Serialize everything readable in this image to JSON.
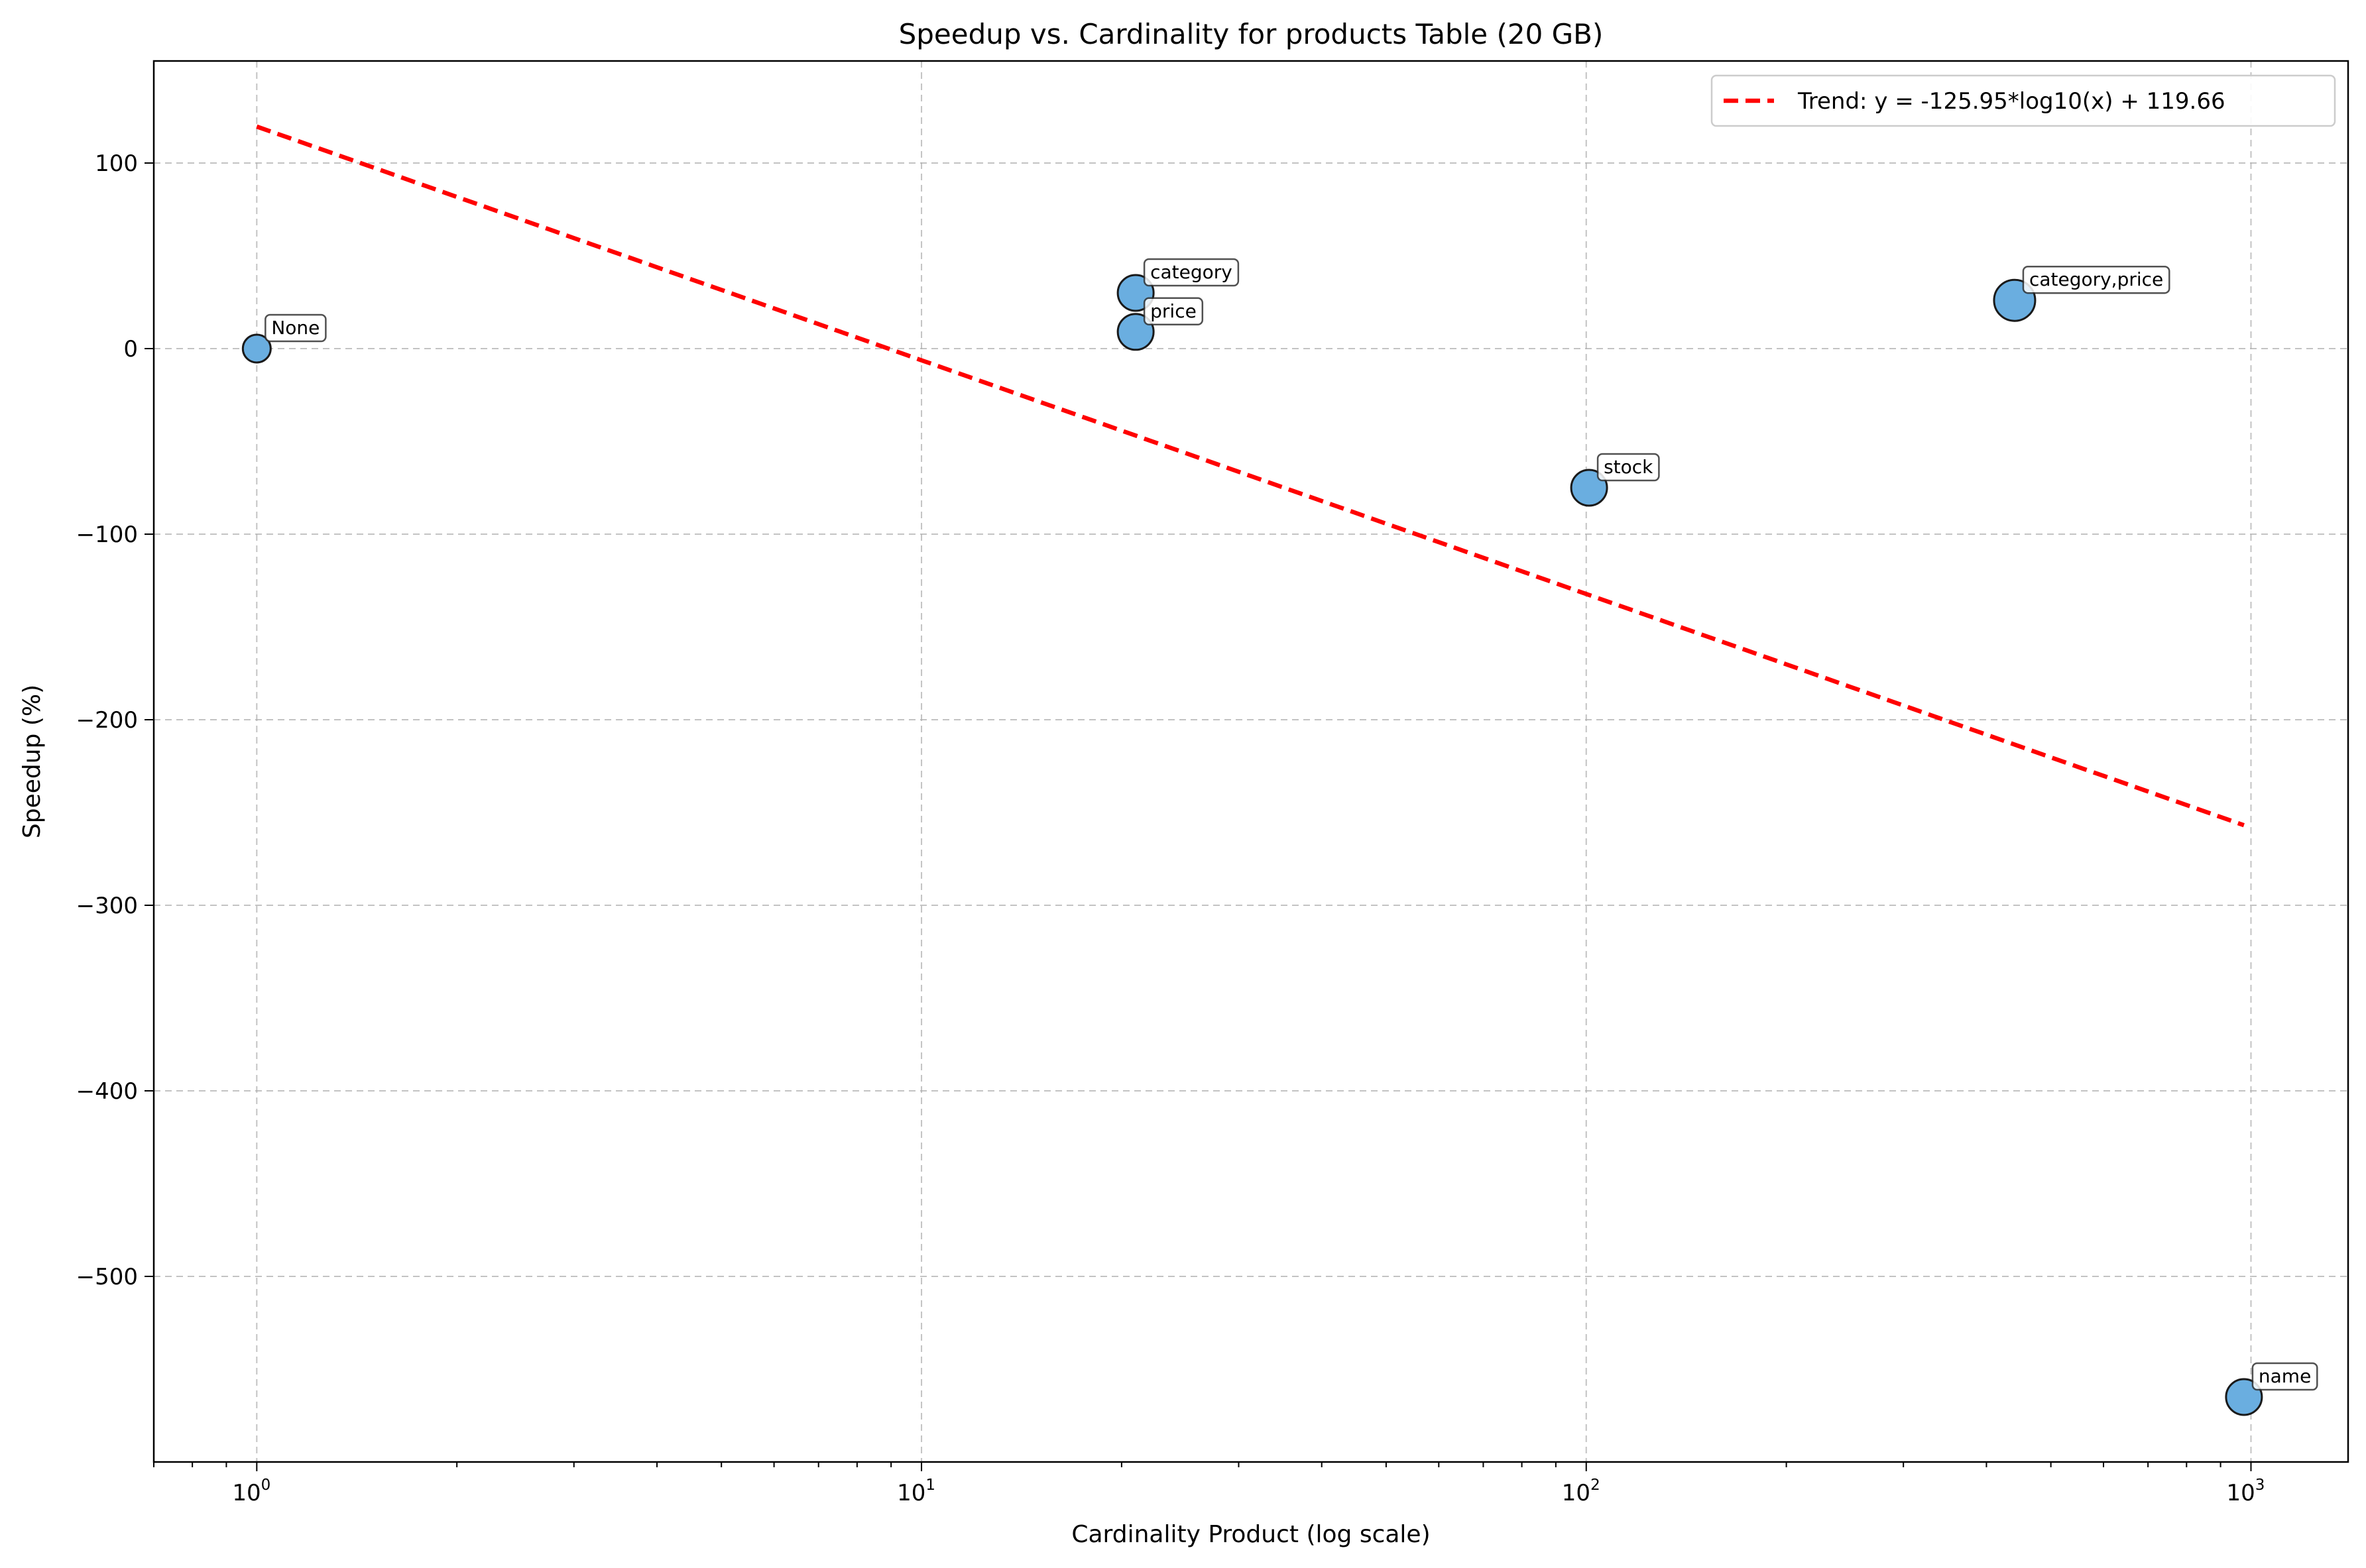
{
  "chart_data": {
    "type": "scatter",
    "title": "Speedup vs. Cardinality for products Table (20 GB)",
    "xlabel": "Cardinality Product (log scale)",
    "ylabel": "Speedup (%)",
    "x_scale": "log",
    "xlim": [
      0.7,
      1400
    ],
    "ylim": [
      -600,
      155
    ],
    "x_ticks": [
      {
        "value": 1,
        "base": "10",
        "exp": "0"
      },
      {
        "value": 10,
        "base": "10",
        "exp": "1"
      },
      {
        "value": 100,
        "base": "10",
        "exp": "2"
      },
      {
        "value": 1000,
        "base": "10",
        "exp": "3"
      }
    ],
    "y_ticks": [
      {
        "value": 100,
        "label": "100"
      },
      {
        "value": 0,
        "label": "0"
      },
      {
        "value": -100,
        "label": "−100"
      },
      {
        "value": -200,
        "label": "−200"
      },
      {
        "value": -300,
        "label": "−300"
      },
      {
        "value": -400,
        "label": "−400"
      },
      {
        "value": -500,
        "label": "−500"
      }
    ],
    "grid": true,
    "legend_position": "top-right",
    "points": [
      {
        "label": "None",
        "x": 1,
        "y": 0,
        "size": 1
      },
      {
        "label": "category",
        "x": 21,
        "y": 30,
        "size": 2
      },
      {
        "label": "price",
        "x": 21,
        "y": 9,
        "size": 2
      },
      {
        "label": "stock",
        "x": 101,
        "y": -75,
        "size": 2
      },
      {
        "label": "category,price",
        "x": 441,
        "y": 26,
        "size": 3
      },
      {
        "label": "name",
        "x": 976,
        "y": -565,
        "size": 2
      }
    ],
    "trend": {
      "label": "Trend: y = -125.95*log10(x) + 119.66",
      "slope": -125.95,
      "intercept": 119.66,
      "x_range": [
        1,
        976
      ]
    },
    "colors": {
      "point_fill": "#6aaee0",
      "trend_line": "#ff0000"
    }
  }
}
